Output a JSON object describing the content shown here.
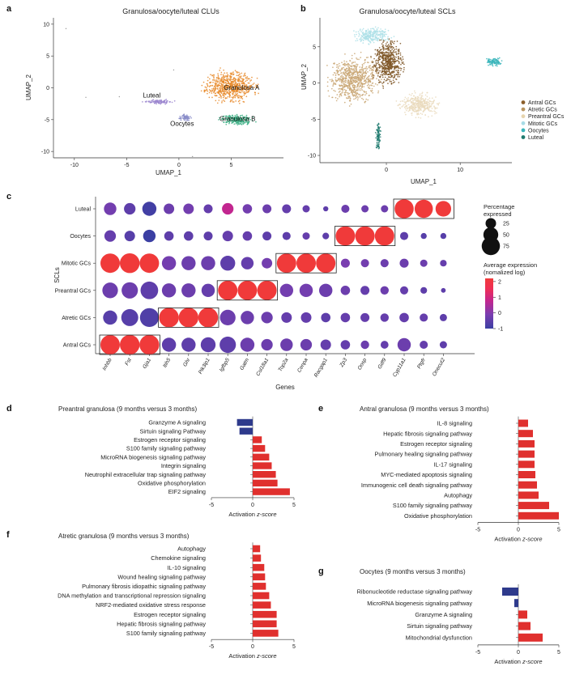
{
  "chart_data": {
    "a": {
      "type": "scatter",
      "label": "a",
      "title": "Granulosa/oocyte/luteal CLUs",
      "xlabel": "UMAP_1",
      "ylabel": "UMAP_2",
      "xlim": [
        -12,
        10
      ],
      "ylim": [
        -11,
        11
      ],
      "xticks": [
        -10,
        -5,
        0,
        5
      ],
      "yticks": [
        10,
        5,
        0,
        -5,
        -10
      ],
      "clusters": [
        {
          "name": "Granulosa A",
          "color": "#e8892a",
          "cx": 4.9,
          "cy": 0.3,
          "rx": 2.6,
          "ry": 2.6,
          "n": 650,
          "label_x": 6.0,
          "label_y": -0.3
        },
        {
          "name": "Granulosa B",
          "color": "#3aae82",
          "cx": 5.5,
          "cy": -5.0,
          "rx": 1.6,
          "ry": 0.9,
          "n": 220,
          "label_x": 5.6,
          "label_y": -5.2
        },
        {
          "name": "Luteal",
          "color": "#9b86cf",
          "cx": -1.8,
          "cy": -2.2,
          "rx": 1.6,
          "ry": 0.35,
          "n": 90,
          "label_x": -2.6,
          "label_y": -1.5
        },
        {
          "name": "Oocytes",
          "color": "#8a8dc9",
          "cx": 0.6,
          "cy": -4.7,
          "rx": 0.6,
          "ry": 0.5,
          "n": 70,
          "label_x": 0.3,
          "label_y": -6.0
        }
      ]
    },
    "b": {
      "type": "scatter",
      "label": "b",
      "title": "Granulosa/oocyte/luteal SCLs",
      "xlabel": "UMAP_1",
      "ylabel": "UMAP_2",
      "xlim": [
        -9,
        17
      ],
      "ylim": [
        -11,
        9
      ],
      "xticks": [
        0,
        10
      ],
      "yticks": [
        5,
        0,
        -5,
        -10
      ],
      "legend": [
        {
          "name": "Antral GCs",
          "color": "#8b5e2b"
        },
        {
          "name": "Atretic GCs",
          "color": "#b89560"
        },
        {
          "name": "Preantral GCs",
          "color": "#e6d4ae"
        },
        {
          "name": "Mitotic GCs",
          "color": "#a8dce6"
        },
        {
          "name": "Oocytes",
          "color": "#3ab5bb"
        },
        {
          "name": "Luteal",
          "color": "#1f7a6e"
        }
      ],
      "clusters": [
        {
          "name": "Atretic GCs",
          "color": "#c9a673",
          "cx": -4.5,
          "cy": 0.5,
          "rx": 3.6,
          "ry": 3.4,
          "n": 700
        },
        {
          "name": "Antral GCs",
          "color": "#7d5423",
          "cx": 0.2,
          "cy": 2.8,
          "rx": 2.2,
          "ry": 3.2,
          "n": 550
        },
        {
          "name": "Preantral GCs",
          "color": "#eadbbd",
          "cx": 4.4,
          "cy": -3.0,
          "rx": 2.8,
          "ry": 1.7,
          "n": 380
        },
        {
          "name": "Mitotic GCs",
          "color": "#aee0e8",
          "cx": -2.0,
          "cy": 6.6,
          "rx": 2.8,
          "ry": 1.2,
          "n": 260
        },
        {
          "name": "Oocytes",
          "color": "#3ab5bb",
          "cx": 14.6,
          "cy": 2.9,
          "rx": 1.3,
          "ry": 0.6,
          "n": 100
        },
        {
          "name": "Luteal",
          "color": "#1f7a6e",
          "cx": -1.1,
          "cy": -7.4,
          "rx": 0.35,
          "ry": 2.3,
          "n": 90
        }
      ]
    },
    "c": {
      "type": "dotplot",
      "label": "c",
      "xlabel": "Genes",
      "ylabel": "SCLs",
      "genes": [
        "Inhbb",
        "Fst",
        "Gja1",
        "Itih5",
        "Ghr",
        "Pik3ip1",
        "Igfbp5",
        "Gatm",
        "Col18a1",
        "Top2a",
        "Cenpa",
        "Racgap1",
        "Zp3",
        "Oosp",
        "Gdf9",
        "Cyp11a1",
        "Ptgfr",
        "Onecut2"
      ],
      "groups": [
        "Luteal",
        "Oocytes",
        "Mitotic GCs",
        "Preantral GCs",
        "Atretic GCs",
        "Antral GCs"
      ],
      "pct": [
        [
          35,
          30,
          45,
          25,
          25,
          18,
          30,
          20,
          18,
          18,
          12,
          6,
          15,
          12,
          12,
          82,
          75,
          55
        ],
        [
          30,
          25,
          35,
          20,
          20,
          18,
          25,
          20,
          18,
          15,
          12,
          10,
          85,
          85,
          85,
          15,
          8,
          8
        ],
        [
          85,
          88,
          85,
          45,
          45,
          45,
          50,
          35,
          25,
          85,
          85,
          85,
          18,
          15,
          15,
          18,
          12,
          10
        ],
        [
          55,
          60,
          70,
          45,
          45,
          40,
          85,
          85,
          85,
          40,
          40,
          40,
          20,
          18,
          16,
          15,
          10,
          5
        ],
        [
          45,
          65,
          80,
          88,
          88,
          88,
          55,
          40,
          30,
          25,
          25,
          20,
          20,
          18,
          16,
          20,
          15,
          12
        ],
        [
          85,
          88,
          88,
          45,
          45,
          50,
          60,
          45,
          30,
          35,
          30,
          25,
          20,
          16,
          14,
          40,
          15,
          12
        ]
      ],
      "expr": [
        [
          -0.2,
          -0.5,
          -0.9,
          -0.3,
          -0.2,
          -0.4,
          0.7,
          -0.2,
          -0.3,
          -0.4,
          -0.4,
          -0.5,
          -0.3,
          -0.3,
          -0.3,
          2.2,
          2.2,
          2.2
        ],
        [
          -0.4,
          -0.6,
          -1.0,
          -0.5,
          -0.5,
          -0.5,
          -0.4,
          -0.4,
          -0.5,
          -0.5,
          -0.4,
          -0.5,
          2.2,
          2.2,
          2.2,
          -0.5,
          -0.6,
          -0.6
        ],
        [
          2.2,
          2.2,
          2.2,
          -0.2,
          -0.3,
          -0.3,
          -0.5,
          -0.4,
          -0.2,
          2.2,
          2.2,
          2.2,
          -0.1,
          -0.2,
          -0.3,
          -0.3,
          -0.3,
          -0.4
        ],
        [
          -0.3,
          -0.3,
          -0.5,
          -0.3,
          -0.3,
          -0.4,
          2.2,
          2.2,
          2.2,
          -0.2,
          -0.2,
          -0.3,
          -0.3,
          -0.4,
          -0.3,
          -0.4,
          -0.5,
          -0.5
        ],
        [
          -0.6,
          -0.6,
          -0.7,
          2.2,
          2.2,
          2.2,
          -0.3,
          -0.3,
          -0.3,
          -0.4,
          -0.4,
          -0.5,
          -0.4,
          -0.4,
          -0.4,
          -0.4,
          -0.4,
          -0.5
        ],
        [
          2.2,
          2.2,
          2.2,
          -0.5,
          -0.5,
          -0.5,
          -0.5,
          -0.3,
          -0.3,
          -0.3,
          -0.3,
          -0.4,
          -0.4,
          -0.3,
          -0.4,
          -0.3,
          -0.4,
          -0.5
        ]
      ],
      "boxes": [
        {
          "group": "Luteal",
          "genes": [
            "Cyp11a1",
            "Ptgfr",
            "Onecut2"
          ]
        },
        {
          "group": "Oocytes",
          "genes": [
            "Zp3",
            "Oosp",
            "Gdf9"
          ]
        },
        {
          "group": "Mitotic GCs",
          "genes": [
            "Top2a",
            "Cenpa",
            "Racgap1"
          ]
        },
        {
          "group": "Preantral GCs",
          "genes": [
            "Igfbp5",
            "Gatm",
            "Col18a1"
          ]
        },
        {
          "group": "Atretic GCs",
          "genes": [
            "Itih5",
            "Ghr",
            "Pik3ip1"
          ]
        },
        {
          "group": "Antral GCs",
          "genes": [
            "Inhbb",
            "Fst",
            "Gja1"
          ]
        }
      ],
      "size_legend": {
        "title": "Percentage expressed",
        "title_lines": [
          "Percentage",
          "expressed"
        ],
        "values": [
          25,
          50,
          75
        ]
      },
      "color_legend": {
        "title": "Average expression (nomalized log)",
        "title_lines": [
          "Average expression",
          "(nomalized log)"
        ],
        "ticks": [
          2,
          1,
          0,
          -1
        ],
        "range": [
          -1,
          2.2
        ]
      }
    },
    "bars": [
      {
        "type": "bar",
        "label": "d",
        "title": "Preantral granulosa (9 months versus 3 months)",
        "xlabel": "Activation z-score",
        "xlim": [
          -5,
          5
        ],
        "xticks": [
          -5,
          0,
          5
        ],
        "categories": [
          "Granzyme A signaling",
          "Sirtuin signaling Pathway",
          "Estrogen receptor signaling",
          "S100 family signaling pathway",
          "MicroRNA biogenesis signaling pathway",
          "Integrin signaling",
          "Neutrophil extracellular trap signaling pathway",
          "Oxidative phosphorylation",
          "EIF2 signaling"
        ],
        "values": [
          -1.9,
          -1.6,
          1.1,
          1.5,
          2.0,
          2.3,
          2.8,
          3.0,
          4.5
        ]
      },
      {
        "type": "bar",
        "label": "e",
        "title": "Antral granulosa (9 months versus 3 months)",
        "xlabel": "Activation z-score",
        "xlim": [
          -5,
          5
        ],
        "xticks": [
          -5,
          0,
          5
        ],
        "categories": [
          "IL-8 signaling",
          "Hepatic fibrosis signaling pathway",
          "Estrogen receptor signaling",
          "Pulmonary healing signaling pathway",
          "IL-17 signaling",
          "MYC-mediated apoptosis signaling",
          "Immunogenic cell death signaling pathway",
          "Autophagy",
          "S100 family signaling pathway",
          "Oxidative phosphorylation"
        ],
        "values": [
          1.2,
          1.8,
          2.0,
          2.0,
          2.0,
          2.1,
          2.3,
          2.5,
          3.8,
          5.0
        ]
      },
      {
        "type": "bar",
        "label": "f",
        "title": "Atretic granulosa (9 months versus 3 months)",
        "xlabel": "Activation z-score",
        "xlim": [
          -5,
          5
        ],
        "xticks": [
          -5,
          0,
          5
        ],
        "categories": [
          "Autophagy",
          "Chemokine signaling",
          "IL-10 signaling",
          "Wound healing signaling pathway",
          "Pulmonary fibrosis idiopathic signaling pathway",
          "DNA methylation and transcriptional repression signaling",
          "NRF2-mediated oxidative stress response",
          "Estrogen receptor signaling",
          "Hepatic fibrosis signaling pathway",
          "S100 family signaling pathway"
        ],
        "values": [
          0.9,
          1.0,
          1.4,
          1.5,
          1.6,
          2.0,
          2.2,
          2.9,
          2.9,
          3.1
        ]
      },
      {
        "type": "bar",
        "label": "g",
        "title": "Oocytes (9 months versus 3 months)",
        "xlabel": "Activation z-score",
        "xlim": [
          -5,
          5
        ],
        "xticks": [
          -5,
          0,
          5
        ],
        "categories": [
          "Ribonucleotide reductase signaling pathway",
          "MicroRNA biogenesis signaling pathway",
          "Granzyme A signaling",
          "Sirtuin signaling pathway",
          "Mitochondrial dysfunction"
        ],
        "values": [
          -2.0,
          -0.5,
          1.1,
          1.5,
          3.0
        ]
      }
    ]
  },
  "colors": {
    "positive_bar": "#e0302e",
    "negative_bar": "#2e3a8c",
    "axis": "#333333",
    "text": "#222222"
  }
}
